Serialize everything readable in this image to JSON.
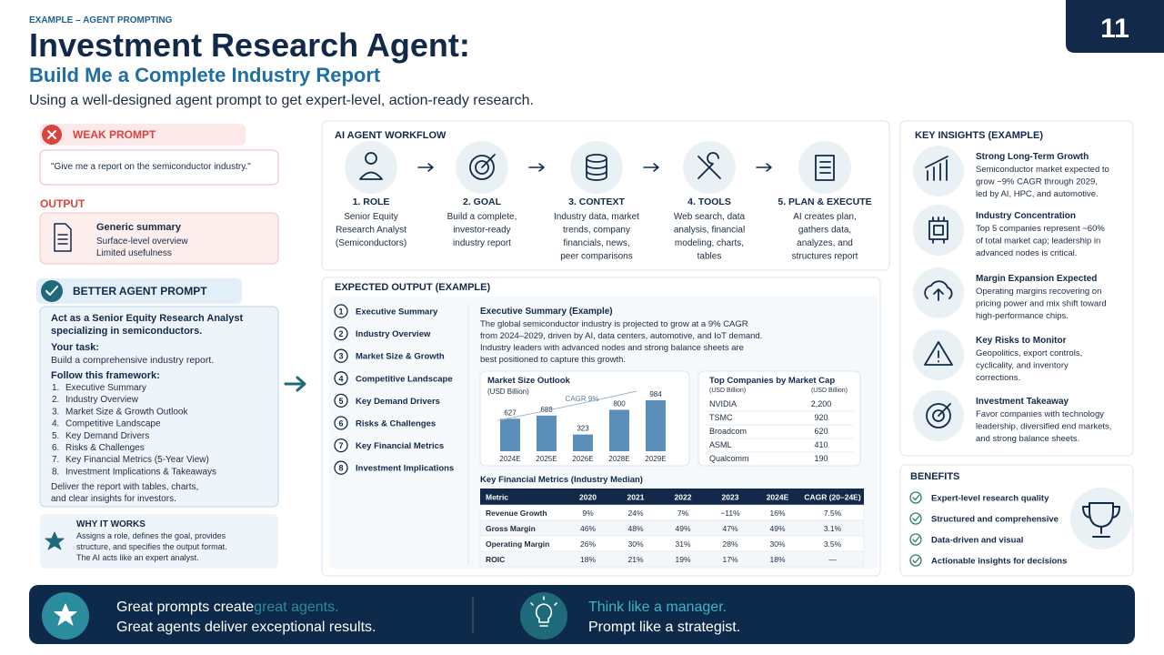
{
  "header": {
    "eyebrow": "EXAMPLE – AGENT PROMPTING",
    "title": "Investment Research Agent:",
    "subtitle": "Build Me a Complete Industry Report",
    "tagline": "Using a well-designed agent prompt to get expert-level, action-ready research.",
    "page_number": "11"
  },
  "weak_prompt": {
    "heading": "WEAK PROMPT",
    "quote": "\"Give me a report on the semiconductor industry.\"",
    "output_label": "OUTPUT",
    "output_title": "Generic summary",
    "output_lines": [
      "Surface-level overview",
      "Limited usefulness"
    ]
  },
  "better_prompt": {
    "heading": "BETTER AGENT PROMPT",
    "intro": [
      "Act as a Senior Equity Research Analyst",
      "specializing in semiconductors."
    ],
    "task_label": "Your task:",
    "task": "Build a comprehensive industry report.",
    "framework_label": "Follow this framework:",
    "framework": [
      {
        "number": "1.",
        "label": "Executive Summary"
      },
      {
        "number": "2.",
        "label": "Industry Overview"
      },
      {
        "number": "3.",
        "label": "Market Size & Growth Outlook"
      },
      {
        "number": "4.",
        "label": "Competitive Landscape"
      },
      {
        "number": "5.",
        "label": "Key Demand Drivers"
      },
      {
        "number": "6.",
        "label": "Risks & Challenges"
      },
      {
        "number": "7.",
        "label": "Key Financial Metrics (5-Year View)"
      },
      {
        "number": "8.",
        "label": "Investment Implications & Takeaways"
      }
    ],
    "closing": [
      "Deliver the report with tables, charts,",
      "and clear insights for investors."
    ]
  },
  "why": {
    "heading": "WHY IT WORKS",
    "text": [
      "Assigns a role, defines the goal, provides",
      "structure, and specifies the output format.",
      "The AI acts like an expert analyst."
    ]
  },
  "workflow": {
    "heading": "AI AGENT WORKFLOW",
    "steps": [
      {
        "label": "1. ROLE",
        "text": [
          "Senior Equity",
          "Research Analyst",
          "(Semiconductors)"
        ]
      },
      {
        "label": "2. GOAL",
        "text": [
          "Build a complete,",
          "investor-ready",
          "industry report"
        ]
      },
      {
        "label": "3. CONTEXT",
        "text": [
          "Industry data, market",
          "trends, company",
          "financials, news,",
          "peer comparisons"
        ]
      },
      {
        "label": "4. TOOLS",
        "text": [
          "Web search, data",
          "analysis, financial",
          "modeling, charts,",
          "tables"
        ]
      },
      {
        "label": "5. PLAN & EXECUTE",
        "text": [
          "AI creates plan,",
          "gathers data,",
          "analyzes, and",
          "structures report"
        ]
      }
    ]
  },
  "expected_output": {
    "heading": "EXPECTED OUTPUT (EXAMPLE)",
    "sections": [
      {
        "number": "1",
        "label": "Executive Summary"
      },
      {
        "number": "2",
        "label": "Industry Overview"
      },
      {
        "number": "3",
        "label": "Market Size & Growth"
      },
      {
        "number": "4",
        "label": "Competitive Landscape"
      },
      {
        "number": "5",
        "label": "Key Demand Drivers"
      },
      {
        "number": "6",
        "label": "Risks & Challenges"
      },
      {
        "number": "7",
        "label": "Key Financial Metrics"
      },
      {
        "number": "8",
        "label": "Investment Implications"
      }
    ],
    "summary_title": "Executive Summary (Example)",
    "summary_text": [
      "The global semiconductor industry is projected to grow at a 9% CAGR",
      "from 2024–2029, driven by AI, data centers, automotive, and IoT demand.",
      "Industry leaders with advanced nodes and strong balance sheets are",
      "best positioned to capture this growth."
    ],
    "top_companies": {
      "title": "Top Companies by Market Cap",
      "subheaders": [
        "(USD Billion)",
        "(USD Billion)"
      ],
      "rows": [
        [
          "NVIDIA",
          "2,200"
        ],
        [
          "TSMC",
          "920"
        ],
        [
          "Broadcom",
          "620"
        ],
        [
          "ASML",
          "410"
        ],
        [
          "Qualcomm",
          "190"
        ]
      ]
    },
    "metrics_table": {
      "title": "Key Financial Metrics (Industry Median)",
      "header": [
        "Metric",
        "2020",
        "2021",
        "2022",
        "2023",
        "2024E",
        "CAGR (20–24E)"
      ],
      "rows": [
        [
          "Revenue Growth",
          "9%",
          "24%",
          "7%",
          "−11%",
          "16%",
          "7.5%"
        ],
        [
          "Gross Margin",
          "46%",
          "48%",
          "49%",
          "47%",
          "49%",
          "3.1%"
        ],
        [
          "Operating Margin",
          "26%",
          "30%",
          "31%",
          "28%",
          "30%",
          "3.5%"
        ],
        [
          "ROIC",
          "18%",
          "21%",
          "19%",
          "17%",
          "18%",
          "—"
        ]
      ]
    }
  },
  "chart_data": {
    "type": "bar",
    "title": "Market Size Outlook",
    "subtitle": "(USD Billion)",
    "annotation": "CAGR 9%",
    "categories": [
      "2024E",
      "2025E",
      "2026E",
      "2028E",
      "2029E"
    ],
    "values": [
      627,
      688,
      323,
      800,
      984
    ],
    "color": "#5b8fb9"
  },
  "insights": {
    "heading": "KEY INSIGHTS (EXAMPLE)",
    "items": [
      {
        "title": "Strong Long-Term Growth",
        "text": [
          "Semiconductor market expected to",
          "grow ~9% CAGR through 2029,",
          "led by AI, HPC, and automotive."
        ]
      },
      {
        "title": "Industry Concentration",
        "text": [
          "Top 5 companies represent ~60%",
          "of total market cap; leadership in",
          "advanced nodes is critical."
        ]
      },
      {
        "title": "Margin Expansion Expected",
        "text": [
          "Operating margins recovering on",
          "pricing power and mix shift toward",
          "high-performance chips."
        ]
      },
      {
        "title": "Key Risks to Monitor",
        "text": [
          "Geopolitics, export controls,",
          "cyclicality, and inventory",
          "corrections."
        ]
      },
      {
        "title": "Investment Takeaway",
        "text": [
          "Favor companies with technology",
          "leadership, diversified end markets,",
          "and strong balance sheets."
        ]
      }
    ]
  },
  "benefits": {
    "heading": "BENEFITS",
    "items": [
      "Expert-level research quality",
      "Structured and comprehensive",
      "Data-driven and visual",
      "Actionable insights for decisions"
    ]
  },
  "footer": {
    "left": [
      [
        "Great prompts create ",
        "great agents."
      ],
      [
        "Great agents deliver exceptional results."
      ]
    ],
    "right": [
      [
        "Think like a manager."
      ],
      [
        "Prompt like a strategist."
      ]
    ]
  }
}
